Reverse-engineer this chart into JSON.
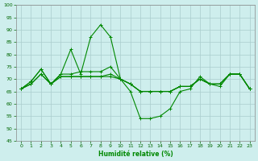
{
  "xlabel": "Humidité relative (%)",
  "background_color": "#ceeeed",
  "grid_color": "#aacccc",
  "line_color": "#008800",
  "xlim": [
    -0.5,
    23.5
  ],
  "ylim": [
    45,
    100
  ],
  "yticks": [
    45,
    50,
    55,
    60,
    65,
    70,
    75,
    80,
    85,
    90,
    95,
    100
  ],
  "xticks": [
    0,
    1,
    2,
    3,
    4,
    5,
    6,
    7,
    8,
    9,
    10,
    11,
    12,
    13,
    14,
    15,
    16,
    17,
    18,
    19,
    20,
    21,
    22,
    23
  ],
  "series1": [
    66,
    69,
    74,
    68,
    72,
    82,
    72,
    87,
    92,
    87,
    70,
    65,
    54,
    54,
    55,
    58,
    65,
    66,
    71,
    68,
    67,
    72,
    72,
    66
  ],
  "series2": [
    66,
    69,
    74,
    68,
    72,
    72,
    73,
    73,
    73,
    75,
    70,
    68,
    65,
    65,
    65,
    65,
    67,
    67,
    70,
    68,
    68,
    72,
    72,
    66
  ],
  "series3": [
    66,
    68,
    72,
    68,
    71,
    71,
    71,
    71,
    71,
    72,
    70,
    68,
    65,
    65,
    65,
    65,
    67,
    67,
    70,
    68,
    68,
    72,
    72,
    66
  ],
  "series4": [
    66,
    68,
    72,
    68,
    71,
    71,
    71,
    71,
    71,
    71,
    70,
    68,
    65,
    65,
    65,
    65,
    67,
    67,
    70,
    68,
    68,
    72,
    72,
    66
  ]
}
